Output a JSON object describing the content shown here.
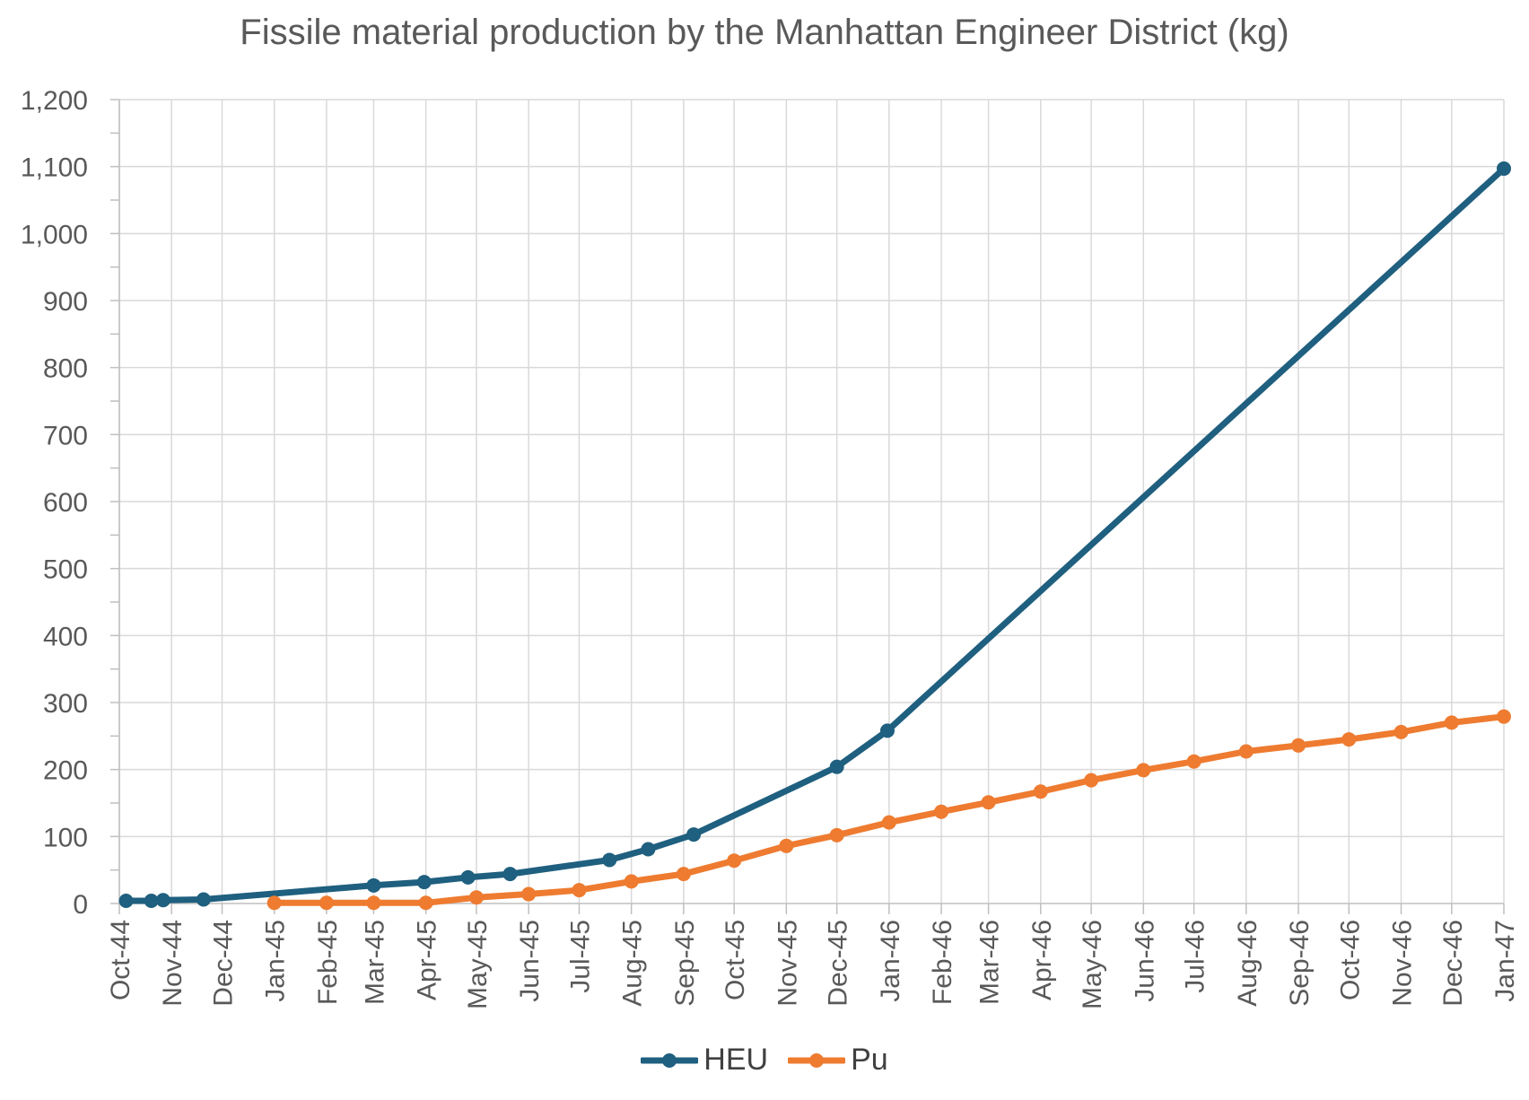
{
  "chart_data": {
    "type": "line",
    "title": "Fissile material production by the Manhattan Engineer District (kg)",
    "xlabel": "",
    "ylabel": "",
    "ylim": [
      0,
      1200
    ],
    "yticks": [
      "0",
      "100",
      "200",
      "300",
      "400",
      "500",
      "600",
      "700",
      "800",
      "900",
      "1,000",
      "1,100",
      "1,200"
    ],
    "xlim": [
      "1944-10-01",
      "1947-01-01"
    ],
    "xticks": [
      {
        "date": "1944-10-01",
        "label": "Oct-44"
      },
      {
        "date": "1944-11-01",
        "label": "Nov-44"
      },
      {
        "date": "1944-12-01",
        "label": "Dec-44"
      },
      {
        "date": "1945-01-01",
        "label": "Jan-45"
      },
      {
        "date": "1945-02-01",
        "label": "Feb-45"
      },
      {
        "date": "1945-03-01",
        "label": "Mar-45"
      },
      {
        "date": "1945-04-01",
        "label": "Apr-45"
      },
      {
        "date": "1945-05-01",
        "label": "May-45"
      },
      {
        "date": "1945-06-01",
        "label": "Jun-45"
      },
      {
        "date": "1945-07-01",
        "label": "Jul-45"
      },
      {
        "date": "1945-08-01",
        "label": "Aug-45"
      },
      {
        "date": "1945-09-01",
        "label": "Sep-45"
      },
      {
        "date": "1945-10-01",
        "label": "Oct-45"
      },
      {
        "date": "1945-11-01",
        "label": "Nov-45"
      },
      {
        "date": "1945-12-01",
        "label": "Dec-45"
      },
      {
        "date": "1946-01-01",
        "label": "Jan-46"
      },
      {
        "date": "1946-02-01",
        "label": "Feb-46"
      },
      {
        "date": "1946-03-01",
        "label": "Mar-46"
      },
      {
        "date": "1946-04-01",
        "label": "Apr-46"
      },
      {
        "date": "1946-05-01",
        "label": "May-46"
      },
      {
        "date": "1946-06-01",
        "label": "Jun-46"
      },
      {
        "date": "1946-07-01",
        "label": "Jul-46"
      },
      {
        "date": "1946-08-01",
        "label": "Aug-46"
      },
      {
        "date": "1946-09-01",
        "label": "Sep-46"
      },
      {
        "date": "1946-10-01",
        "label": "Oct-46"
      },
      {
        "date": "1946-11-01",
        "label": "Nov-46"
      },
      {
        "date": "1946-12-01",
        "label": "Dec-46"
      },
      {
        "date": "1947-01-01",
        "label": "Jan-47"
      }
    ],
    "grid": true,
    "legend": "bottom",
    "series": [
      {
        "name": "HEU",
        "color": "#1f5f7f",
        "points": [
          {
            "x": "1944-10-05",
            "y": 4
          },
          {
            "x": "1944-10-20",
            "y": 4
          },
          {
            "x": "1944-10-27",
            "y": 5
          },
          {
            "x": "1944-11-20",
            "y": 6
          },
          {
            "x": "1945-03-01",
            "y": 27
          },
          {
            "x": "1945-03-31",
            "y": 32
          },
          {
            "x": "1945-04-26",
            "y": 39
          },
          {
            "x": "1945-05-21",
            "y": 44
          },
          {
            "x": "1945-07-19",
            "y": 65
          },
          {
            "x": "1945-08-11",
            "y": 81
          },
          {
            "x": "1945-09-07",
            "y": 103
          },
          {
            "x": "1945-12-01",
            "y": 204
          },
          {
            "x": "1945-12-31",
            "y": 258
          },
          {
            "x": "1947-01-01",
            "y": 1097
          }
        ]
      },
      {
        "name": "Pu",
        "color": "#ee7b30",
        "points": [
          {
            "x": "1945-01-01",
            "y": 1
          },
          {
            "x": "1945-02-01",
            "y": 1
          },
          {
            "x": "1945-03-01",
            "y": 1
          },
          {
            "x": "1945-04-01",
            "y": 1
          },
          {
            "x": "1945-05-01",
            "y": 9
          },
          {
            "x": "1945-06-01",
            "y": 14
          },
          {
            "x": "1945-07-01",
            "y": 20
          },
          {
            "x": "1945-08-01",
            "y": 33
          },
          {
            "x": "1945-09-01",
            "y": 44
          },
          {
            "x": "1945-10-01",
            "y": 64
          },
          {
            "x": "1945-11-01",
            "y": 86
          },
          {
            "x": "1945-12-01",
            "y": 102
          },
          {
            "x": "1946-01-01",
            "y": 121
          },
          {
            "x": "1946-02-01",
            "y": 137
          },
          {
            "x": "1946-03-01",
            "y": 151
          },
          {
            "x": "1946-04-01",
            "y": 167
          },
          {
            "x": "1946-05-01",
            "y": 184
          },
          {
            "x": "1946-06-01",
            "y": 199
          },
          {
            "x": "1946-07-01",
            "y": 212
          },
          {
            "x": "1946-08-01",
            "y": 227
          },
          {
            "x": "1946-09-01",
            "y": 236
          },
          {
            "x": "1946-10-01",
            "y": 245
          },
          {
            "x": "1946-11-01",
            "y": 256
          },
          {
            "x": "1946-12-01",
            "y": 270
          },
          {
            "x": "1947-01-01",
            "y": 279
          }
        ]
      }
    ]
  }
}
